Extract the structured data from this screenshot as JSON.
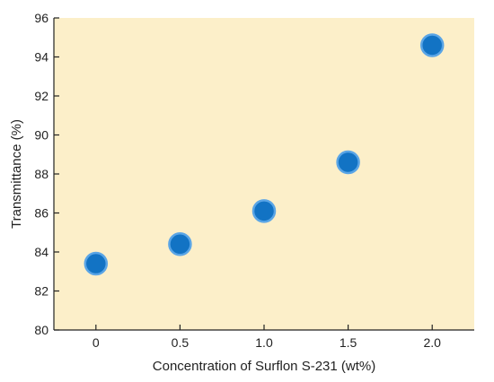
{
  "chart_data": {
    "type": "scatter",
    "title": "",
    "xlabel": "Concentration of Surflon S-231 (wt%)",
    "ylabel": "Transmittance (%)",
    "x_tick_labels": [
      "0",
      "0.5",
      "1.0",
      "1.5",
      "2.0"
    ],
    "y_tick_labels": [
      "80",
      "82",
      "84",
      "86",
      "88",
      "90",
      "92",
      "94",
      "96"
    ],
    "xlim": [
      -0.25,
      2.25
    ],
    "ylim": [
      80,
      96
    ],
    "grid": false,
    "legend": "none",
    "series": [
      {
        "x": [
          0,
          0.5,
          1.0,
          1.5,
          2.0
        ],
        "y": [
          83.4,
          84.4,
          86.1,
          88.6,
          94.6
        ]
      }
    ]
  },
  "colors": {
    "plot_background": "#fcefc9",
    "marker_fill": "#1273c4",
    "marker_outline": "#5aa5e6",
    "axis": "#222222"
  }
}
